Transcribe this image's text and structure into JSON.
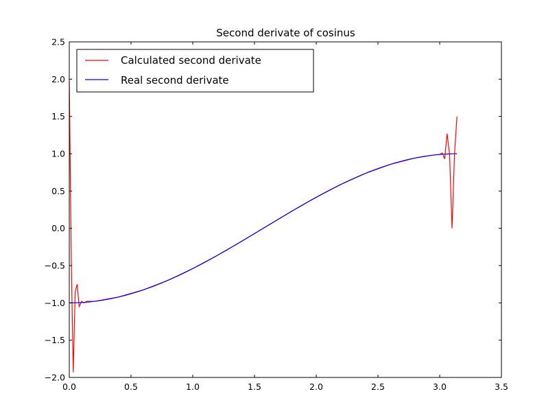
{
  "chart_data": {
    "type": "line",
    "title": "Second derivate of cosinus",
    "xlabel": "",
    "ylabel": "",
    "xlim": [
      0.0,
      3.5
    ],
    "ylim": [
      -2.0,
      2.5
    ],
    "xticks": [
      "0.0",
      "0.5",
      "1.0",
      "1.5",
      "2.0",
      "2.5",
      "3.0",
      "3.5"
    ],
    "yticks": [
      "−2.0",
      "−1.5",
      "−1.0",
      "−0.5",
      "0.0",
      "0.5",
      "1.0",
      "1.5",
      "2.0",
      "2.5"
    ],
    "grid": false,
    "legend": "top-left",
    "series": [
      {
        "name": "Calculated second derivate",
        "color": "#ff0000",
        "x": [
          0.0,
          0.016,
          0.032,
          0.048,
          0.064,
          0.08,
          0.1,
          0.12,
          0.14,
          0.2,
          0.4,
          0.6,
          0.8,
          1.0,
          1.2,
          1.4,
          1.6,
          1.8,
          2.0,
          2.2,
          2.4,
          2.6,
          2.8,
          2.95,
          3.0,
          3.02,
          3.04,
          3.06,
          3.08,
          3.1,
          3.12,
          3.14
        ],
        "y": [
          2.0,
          -0.4,
          -1.93,
          -0.85,
          -0.75,
          -1.05,
          -0.98,
          -1.0,
          -0.98,
          -0.98,
          -0.921,
          -0.825,
          -0.697,
          -0.54,
          -0.362,
          -0.17,
          0.029,
          0.227,
          0.416,
          0.589,
          0.737,
          0.857,
          0.942,
          0.982,
          0.99,
          1.01,
          0.93,
          1.27,
          0.99,
          0.0,
          1.0,
          1.5
        ]
      },
      {
        "name": "Real second derivate",
        "color": "#0000ff",
        "function": "-cos(x)",
        "x_range": [
          0.0,
          3.14
        ]
      }
    ]
  }
}
